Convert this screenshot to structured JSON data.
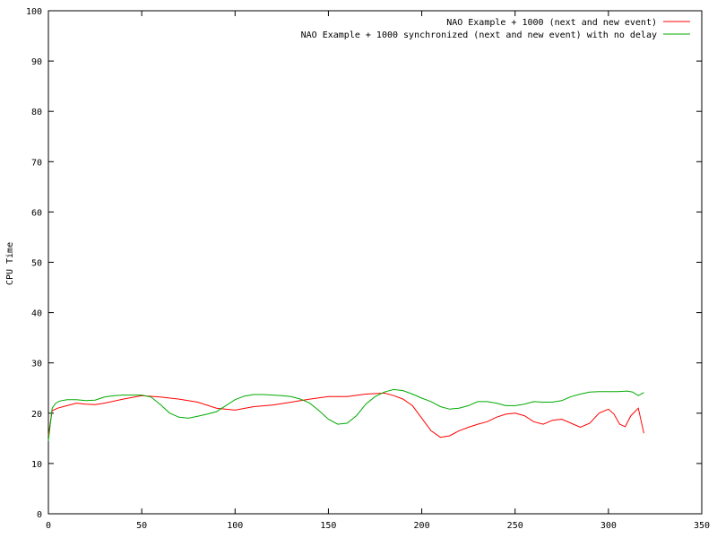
{
  "chart_data": {
    "type": "line",
    "title": "",
    "xlabel": "",
    "ylabel": "CPU Time",
    "xlim": [
      0,
      350
    ],
    "ylim": [
      0,
      100
    ],
    "xticks": [
      0,
      50,
      100,
      150,
      200,
      250,
      300,
      350
    ],
    "yticks": [
      0,
      10,
      20,
      30,
      40,
      50,
      60,
      70,
      80,
      90,
      100
    ],
    "grid": false,
    "legend_position": "top-right",
    "series": [
      {
        "name": "NAO Example + 1000  (next and new event)",
        "color": "#ff0000",
        "x": [
          0,
          2,
          5,
          10,
          15,
          20,
          25,
          30,
          40,
          50,
          60,
          70,
          80,
          90,
          100,
          110,
          120,
          130,
          140,
          150,
          160,
          170,
          180,
          185,
          190,
          195,
          200,
          205,
          210,
          215,
          220,
          225,
          230,
          235,
          240,
          245,
          250,
          255,
          260,
          265,
          270,
          275,
          280,
          285,
          290,
          295,
          300,
          303,
          306,
          309,
          312,
          316,
          319
        ],
        "values": [
          15.5,
          20.5,
          21.0,
          21.5,
          22.0,
          21.8,
          21.7,
          22.0,
          22.8,
          23.5,
          23.2,
          22.8,
          22.2,
          21.0,
          20.6,
          21.3,
          21.6,
          22.2,
          22.8,
          23.3,
          23.3,
          23.8,
          24.0,
          23.5,
          22.8,
          21.5,
          19.0,
          16.5,
          15.2,
          15.5,
          16.5,
          17.2,
          17.8,
          18.3,
          19.2,
          19.8,
          20.0,
          19.5,
          18.3,
          17.8,
          18.6,
          18.8,
          18.0,
          17.2,
          18.0,
          20.0,
          20.8,
          19.8,
          17.8,
          17.3,
          19.5,
          21.0,
          16.0
        ]
      },
      {
        "name": "NAO Example + 1000  synchronized (next and new event) with no delay",
        "color": "#00aa00",
        "x": [
          0,
          2,
          4,
          6,
          10,
          15,
          20,
          25,
          30,
          35,
          40,
          45,
          50,
          55,
          60,
          65,
          70,
          75,
          80,
          85,
          90,
          95,
          100,
          105,
          110,
          115,
          120,
          125,
          130,
          135,
          140,
          145,
          150,
          155,
          160,
          165,
          170,
          175,
          180,
          185,
          190,
          195,
          200,
          205,
          210,
          215,
          220,
          225,
          230,
          235,
          240,
          245,
          250,
          255,
          260,
          265,
          270,
          275,
          280,
          285,
          290,
          295,
          300,
          305,
          310,
          313,
          316,
          319
        ],
        "values": [
          14.5,
          21.0,
          22.0,
          22.4,
          22.7,
          22.7,
          22.5,
          22.6,
          23.2,
          23.5,
          23.6,
          23.6,
          23.6,
          23.2,
          21.7,
          20.0,
          19.2,
          19.0,
          19.4,
          19.8,
          20.3,
          21.5,
          22.7,
          23.4,
          23.7,
          23.7,
          23.6,
          23.5,
          23.3,
          22.8,
          22.0,
          20.5,
          18.8,
          17.8,
          18.0,
          19.5,
          21.8,
          23.3,
          24.2,
          24.7,
          24.5,
          23.8,
          23.0,
          22.3,
          21.3,
          20.8,
          21.0,
          21.5,
          22.3,
          22.3,
          22.0,
          21.5,
          21.5,
          21.8,
          22.3,
          22.2,
          22.2,
          22.5,
          23.3,
          23.8,
          24.2,
          24.3,
          24.3,
          24.3,
          24.4,
          24.2,
          23.5,
          24.1
        ]
      }
    ]
  }
}
